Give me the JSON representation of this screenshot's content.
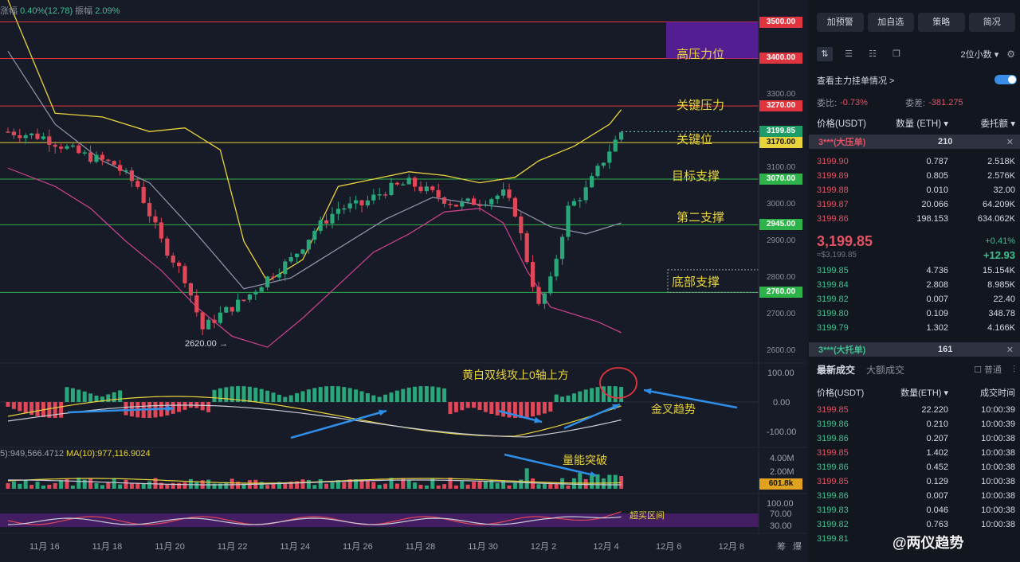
{
  "top_stats": {
    "change_label": "涨幅",
    "change_value": "0.40%(12.78)",
    "amp_label": "振幅",
    "amp_value": "2.09%"
  },
  "levels": [
    {
      "price": 3500,
      "label": "3500.00",
      "color": "#e0343f",
      "text_color": "#ffffff"
    },
    {
      "price": 3400,
      "label": "3400.00",
      "color": "#e0343f",
      "text_color": "#ffffff"
    },
    {
      "price": 3270,
      "label": "3270.00",
      "color": "#e0343f",
      "text_color": "#ffffff"
    },
    {
      "price": 3170,
      "label": "3170.00",
      "color": "#e8d33c",
      "text_color": "#111111"
    },
    {
      "price": 3070,
      "label": "3070.00",
      "color": "#2db34a",
      "text_color": "#ffffff"
    },
    {
      "price": 2945,
      "label": "2945.00",
      "color": "#2db34a",
      "text_color": "#ffffff"
    },
    {
      "price": 2760,
      "label": "2760.00",
      "color": "#2db34a",
      "text_color": "#ffffff"
    }
  ],
  "current_price_tag": {
    "price": 3199.85,
    "label": "3199.85",
    "color": "#1e9b66"
  },
  "price_axis": [
    "3300.00",
    "3100.00",
    "3000.00",
    "2900.00",
    "2800.00",
    "2700.00",
    "2600.00"
  ],
  "annotations": {
    "high_resistance": "高压力位",
    "key_resistance": "关键压力",
    "key_level": "关键位",
    "target_support": "目标支撑",
    "second_support": "第二支撑",
    "bottom_support": "底部支撑",
    "macd_note": "黄白双线攻上0轴上方",
    "golden_cross": "金叉趋势",
    "volume_break": "量能突破",
    "overbought": "超买区间",
    "low_marker": "2620.00 →"
  },
  "macd_axis": [
    "100.00",
    "0.00",
    "-100.00"
  ],
  "volume_axis": [
    "4.00M",
    "2.00M"
  ],
  "volume_tag": "601.8k",
  "volume_ma": {
    "ma5": "5):949,566.4712",
    "ma10": "MA(10):977,116.9024"
  },
  "kdj_axis": [
    "100.00",
    "70.00",
    "30.00"
  ],
  "x_dates": [
    "11月 16",
    "11月 18",
    "11月 20",
    "11月 22",
    "11月 24",
    "11月 26",
    "11月 28",
    "11月 30",
    "12月 2",
    "12月 4",
    "12月 6",
    "12月 8"
  ],
  "x_extra": [
    "筹",
    "爆"
  ],
  "chart_data": {
    "type": "candlestick",
    "y_range": [
      2580,
      3560
    ],
    "macd_range": [
      -130,
      130
    ],
    "price_path": [
      [
        0,
        3200
      ],
      [
        6,
        3185
      ],
      [
        12,
        3140
      ],
      [
        18,
        3110
      ],
      [
        22,
        3050
      ],
      [
        26,
        2900
      ],
      [
        30,
        2800
      ],
      [
        33,
        2660
      ],
      [
        36,
        2700
      ],
      [
        40,
        2740
      ],
      [
        44,
        2800
      ],
      [
        48,
        2850
      ],
      [
        52,
        2930
      ],
      [
        56,
        2990
      ],
      [
        60,
        3000
      ],
      [
        64,
        3040
      ],
      [
        68,
        3060
      ],
      [
        72,
        3030
      ],
      [
        76,
        3000
      ],
      [
        80,
        3010
      ],
      [
        84,
        3030
      ],
      [
        86,
        2980
      ],
      [
        88,
        2850
      ],
      [
        90,
        2720
      ],
      [
        92,
        2790
      ],
      [
        95,
        2990
      ],
      [
        98,
        3040
      ],
      [
        102,
        3150
      ],
      [
        104,
        3199
      ]
    ],
    "upper_band": [
      [
        0,
        3560
      ],
      [
        8,
        3250
      ],
      [
        16,
        3240
      ],
      [
        24,
        3200
      ],
      [
        30,
        3210
      ],
      [
        36,
        3150
      ],
      [
        40,
        2900
      ],
      [
        44,
        2790
      ],
      [
        50,
        2850
      ],
      [
        56,
        3050
      ],
      [
        62,
        3070
      ],
      [
        68,
        3090
      ],
      [
        74,
        3080
      ],
      [
        80,
        3060
      ],
      [
        86,
        3075
      ],
      [
        90,
        3120
      ],
      [
        96,
        3160
      ],
      [
        102,
        3220
      ],
      [
        104,
        3260
      ]
    ],
    "lower_band": [
      [
        0,
        3100
      ],
      [
        8,
        3050
      ],
      [
        14,
        2990
      ],
      [
        20,
        2900
      ],
      [
        26,
        2820
      ],
      [
        32,
        2720
      ],
      [
        38,
        2640
      ],
      [
        44,
        2610
      ],
      [
        50,
        2690
      ],
      [
        56,
        2780
      ],
      [
        62,
        2870
      ],
      [
        68,
        2920
      ],
      [
        74,
        2980
      ],
      [
        80,
        2990
      ],
      [
        84,
        2950
      ],
      [
        88,
        2820
      ],
      [
        92,
        2720
      ],
      [
        96,
        2700
      ],
      [
        100,
        2680
      ],
      [
        104,
        2650
      ]
    ],
    "mid_band": [
      [
        0,
        3420
      ],
      [
        8,
        3220
      ],
      [
        16,
        3120
      ],
      [
        24,
        3060
      ],
      [
        32,
        2920
      ],
      [
        40,
        2770
      ],
      [
        48,
        2800
      ],
      [
        56,
        2880
      ],
      [
        64,
        2960
      ],
      [
        72,
        3020
      ],
      [
        80,
        3000
      ],
      [
        86,
        2990
      ],
      [
        92,
        2940
      ],
      [
        98,
        2920
      ],
      [
        104,
        2950
      ]
    ],
    "macd_hist_sign": [
      -1,
      -1,
      -1,
      -1,
      1,
      1,
      1,
      1,
      -1,
      -1,
      -1,
      -1,
      -1,
      -1,
      1,
      1,
      1,
      1,
      1,
      1,
      1,
      1,
      1,
      1,
      1,
      1,
      1,
      1,
      1,
      1,
      -1,
      -1,
      -1,
      -1,
      -1,
      -1,
      -1,
      1,
      1,
      1,
      1,
      1
    ]
  },
  "panel": {
    "buttons": [
      "加预警",
      "加自选",
      "策略",
      "简况"
    ],
    "precision": "2位小数 ▾",
    "depth_title": "查看主力挂单情况 >",
    "ratio_label": "委比:",
    "ratio_value": "-0.73%",
    "diff_label": "委差:",
    "diff_value": "-381.275",
    "headers": [
      "价格(USDT)",
      "数量 (ETH) ▾",
      "委托额 ▾"
    ],
    "big_ask": {
      "label": "3***(大压单)",
      "qty": "210"
    },
    "asks": [
      [
        "3199.90",
        "0.787",
        "2.518K"
      ],
      [
        "3199.89",
        "0.805",
        "2.576K"
      ],
      [
        "3199.88",
        "0.010",
        "32.00"
      ],
      [
        "3199.87",
        "20.066",
        "64.209K"
      ],
      [
        "3199.86",
        "198.153",
        "634.062K"
      ]
    ],
    "last_price": "3,199.85",
    "last_price_usd": "≈$3,199.85",
    "last_pct": "+0.41%",
    "last_chg": "+12.93",
    "bids": [
      [
        "3199.85",
        "4.736",
        "15.154K"
      ],
      [
        "3199.84",
        "2.808",
        "8.985K"
      ],
      [
        "3199.82",
        "0.007",
        "22.40"
      ],
      [
        "3199.80",
        "0.109",
        "348.78"
      ],
      [
        "3199.79",
        "1.302",
        "4.166K"
      ]
    ],
    "big_bid": {
      "label": "3***(大托单)",
      "qty": "161"
    },
    "trade_tabs": [
      "最新成交",
      "大额成交"
    ],
    "normal_label": "普通",
    "trade_headers": [
      "价格(USDT)",
      "数量(ETH) ▾",
      "成交时间"
    ],
    "trades": [
      [
        "3199.85",
        "22.220",
        "10:00:39",
        "red"
      ],
      [
        "3199.86",
        "0.210",
        "10:00:39",
        "grn"
      ],
      [
        "3199.86",
        "0.207",
        "10:00:38",
        "grn"
      ],
      [
        "3199.85",
        "1.402",
        "10:00:38",
        "red"
      ],
      [
        "3199.86",
        "0.452",
        "10:00:38",
        "grn"
      ],
      [
        "3199.85",
        "0.129",
        "10:00:38",
        "red"
      ],
      [
        "3199.86",
        "0.007",
        "10:00:38",
        "grn"
      ],
      [
        "3199.83",
        "0.046",
        "10:00:38",
        "grn"
      ],
      [
        "3199.82",
        "0.763",
        "10:00:38",
        "grn"
      ],
      [
        "3199.81",
        "",
        "",
        "grn"
      ]
    ],
    "watermark": "@两仪趋势"
  }
}
